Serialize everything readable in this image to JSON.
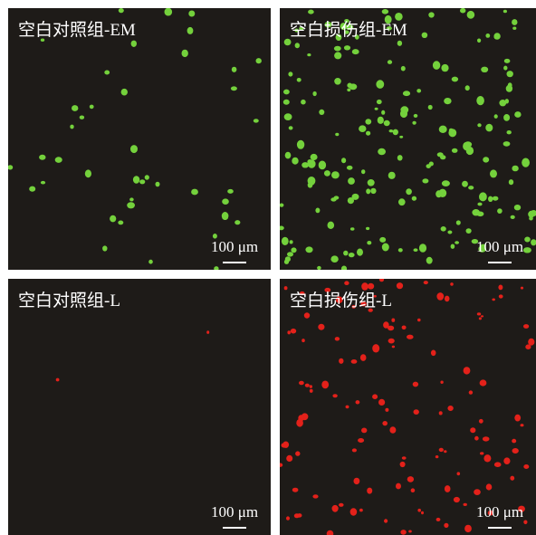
{
  "panels": [
    {
      "label": "空白对照组-EM",
      "scale_bar": "100 μm"
    },
    {
      "label": "空白损伤组-EM",
      "scale_bar": "100 μm"
    },
    {
      "label": "空白对照组-L",
      "scale_bar": "100 μm"
    },
    {
      "label": "空白损伤组-L",
      "scale_bar": "100 μm"
    }
  ]
}
